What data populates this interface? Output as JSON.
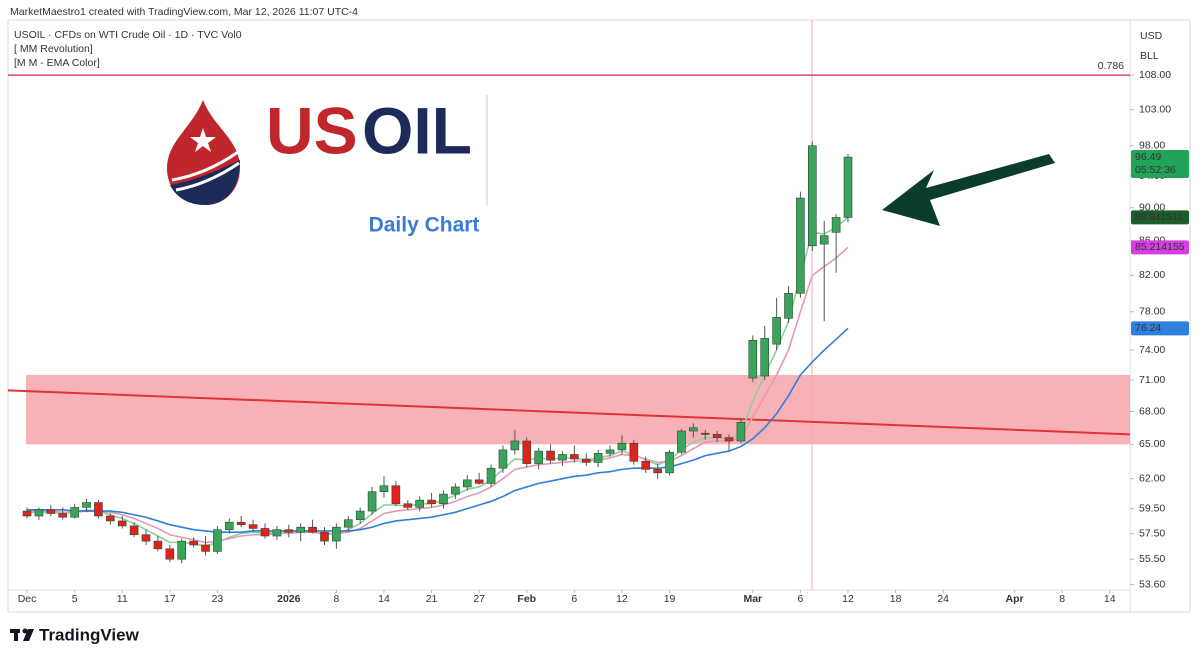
{
  "chart_data": {
    "type": "candlestick",
    "watermark": "MarketMaestro1 created with TradingView.com, Mar 12, 2026 11:07 UTC-4",
    "legend": [
      "USOIL · CFDs on WTI Crude Oil · 1D · TVC  Vol0",
      "[ MM Revolution]",
      "[M M - EMA Color]"
    ],
    "axis_currency": "USD",
    "axis_unit": "BLL",
    "logo_us": "US",
    "logo_oil": "OIL",
    "subtitle": "Daily Chart",
    "footer": "TradingView",
    "countdown": "05:52:36",
    "log_scale": true,
    "grid": false,
    "up_color": "#3aa35c",
    "down_color": "#e2231a",
    "xlim": [
      -1.6,
      92.7
    ],
    "ylim": [
      53.2,
      116.5
    ],
    "xticks": [
      {
        "value": 0,
        "label": "Dec"
      },
      {
        "value": 4,
        "label": "5"
      },
      {
        "value": 8,
        "label": "11"
      },
      {
        "value": 12,
        "label": "17"
      },
      {
        "value": 16,
        "label": "23"
      },
      {
        "value": 22,
        "label": "2026"
      },
      {
        "value": 26,
        "label": "8"
      },
      {
        "value": 30,
        "label": "14"
      },
      {
        "value": 34,
        "label": "21"
      },
      {
        "value": 38,
        "label": "27"
      },
      {
        "value": 42,
        "label": "Feb"
      },
      {
        "value": 46,
        "label": "6"
      },
      {
        "value": 50,
        "label": "12"
      },
      {
        "value": 54,
        "label": "19"
      },
      {
        "value": 61,
        "label": "Mar"
      },
      {
        "value": 65,
        "label": "6"
      },
      {
        "value": 69,
        "label": "12"
      },
      {
        "value": 73,
        "label": "18"
      },
      {
        "value": 77,
        "label": "24"
      },
      {
        "value": 83,
        "label": "Apr"
      },
      {
        "value": 87,
        "label": "8"
      },
      {
        "value": 91,
        "label": "14"
      }
    ],
    "yticks": [
      {
        "value": 108,
        "label": "108.00"
      },
      {
        "value": 103,
        "label": "103.00"
      },
      {
        "value": 98,
        "label": "98.00"
      },
      {
        "value": 94,
        "label": "94.00"
      },
      {
        "value": 90,
        "label": "90.00"
      },
      {
        "value": 86,
        "label": "86.00"
      },
      {
        "value": 82,
        "label": "82.00"
      },
      {
        "value": 78,
        "label": "78.00"
      },
      {
        "value": 74,
        "label": "74.00"
      },
      {
        "value": 71,
        "label": "71.00"
      },
      {
        "value": 68,
        "label": "68.00"
      },
      {
        "value": 65,
        "label": "65.00"
      },
      {
        "value": 62,
        "label": "62.00"
      },
      {
        "value": 59.5,
        "label": "59.50"
      },
      {
        "value": 57.5,
        "label": "57.50"
      },
      {
        "value": 55.5,
        "label": "55.50"
      },
      {
        "value": 53.6,
        "label": "53.60"
      }
    ],
    "open": [
      59.3,
      58.9,
      59.4,
      59.1,
      58.8,
      59.6,
      60.0,
      58.9,
      58.5,
      58.1,
      57.4,
      56.9,
      56.3,
      55.5,
      56.9,
      56.6,
      56.1,
      57.8,
      58.4,
      58.2,
      57.9,
      57.3,
      57.8,
      57.6,
      58.0,
      57.6,
      56.9,
      58.0,
      58.6,
      59.3,
      60.9,
      61.4,
      59.9,
      59.6,
      60.2,
      59.9,
      60.7,
      61.3,
      61.9,
      61.6,
      62.9,
      64.5,
      65.3,
      63.3,
      64.4,
      63.6,
      64.1,
      63.7,
      63.4,
      64.2,
      64.5,
      65.1,
      63.5,
      62.8,
      62.5,
      64.3,
      66.2,
      66.0,
      65.9,
      65.6,
      65.3,
      71.2,
      71.4,
      74.6,
      77.3,
      80.0,
      85.4,
      85.6,
      87.0,
      88.8
    ],
    "high": [
      59.6,
      59.6,
      59.8,
      59.6,
      59.9,
      60.3,
      60.2,
      59.1,
      58.9,
      58.4,
      57.8,
      57.3,
      56.6,
      57.1,
      57.2,
      57.3,
      58.1,
      58.7,
      58.9,
      58.6,
      58.3,
      58.1,
      58.2,
      58.3,
      58.6,
      58.0,
      58.3,
      58.9,
      59.6,
      61.3,
      62.2,
      61.8,
      60.2,
      60.5,
      60.8,
      61.0,
      61.6,
      62.3,
      62.5,
      63.2,
      64.9,
      66.3,
      65.6,
      64.7,
      65.0,
      64.4,
      64.9,
      64.2,
      64.5,
      64.9,
      65.8,
      65.4,
      63.9,
      63.3,
      64.5,
      66.4,
      66.9,
      66.3,
      66.2,
      65.9,
      67.3,
      75.5,
      76.5,
      79.5,
      80.8,
      92.0,
      98.6,
      88.4,
      89.2,
      96.9
    ],
    "low": [
      58.7,
      58.6,
      58.9,
      58.6,
      58.7,
      59.2,
      58.7,
      58.2,
      57.9,
      57.2,
      56.6,
      56.1,
      55.3,
      55.2,
      56.4,
      55.8,
      55.9,
      57.5,
      58.0,
      57.6,
      57.1,
      57.0,
      57.2,
      56.9,
      57.5,
      56.6,
      56.3,
      57.7,
      58.3,
      59.0,
      60.4,
      59.7,
      59.4,
      59.3,
      59.6,
      59.5,
      60.3,
      61.0,
      61.5,
      61.3,
      62.5,
      64.1,
      63.0,
      62.8,
      63.3,
      63.1,
      63.4,
      63.1,
      63.0,
      63.9,
      64.1,
      63.2,
      62.5,
      62.0,
      62.3,
      64.1,
      65.6,
      65.4,
      65.2,
      64.4,
      65.1,
      70.8,
      71.0,
      74.0,
      76.8,
      79.5,
      84.8,
      77.0,
      82.3,
      88.2
    ],
    "close": [
      58.9,
      59.4,
      59.1,
      58.8,
      59.6,
      60.0,
      58.9,
      58.5,
      58.1,
      57.4,
      56.9,
      56.3,
      55.5,
      56.9,
      56.6,
      56.1,
      57.8,
      58.4,
      58.2,
      57.9,
      57.3,
      57.8,
      57.6,
      58.0,
      57.6,
      56.9,
      58.0,
      58.6,
      59.3,
      60.9,
      61.4,
      59.9,
      59.6,
      60.2,
      59.9,
      60.7,
      61.3,
      61.9,
      61.6,
      62.9,
      64.5,
      65.3,
      63.3,
      64.4,
      63.6,
      64.1,
      63.7,
      63.4,
      64.2,
      64.5,
      65.1,
      63.5,
      62.8,
      62.5,
      64.3,
      66.2,
      66.5,
      65.9,
      65.6,
      65.3,
      67.0,
      75.0,
      75.2,
      77.4,
      80.0,
      91.2,
      98.0,
      86.6,
      88.8,
      96.49
    ],
    "last_tag_color": "#22a35a",
    "lines": [
      {
        "color": "#8fcf9e",
        "tag_color": "#1b5e2b",
        "values": [
          59.2,
          59.2,
          59.2,
          59.1,
          59.2,
          59.4,
          59.3,
          59.0,
          58.7,
          58.3,
          57.8,
          57.3,
          56.8,
          56.8,
          56.7,
          56.5,
          56.8,
          57.2,
          57.5,
          57.6,
          57.5,
          57.6,
          57.6,
          57.7,
          57.7,
          57.4,
          57.5,
          57.8,
          58.3,
          59.1,
          59.8,
          59.8,
          59.7,
          59.9,
          59.9,
          60.2,
          60.6,
          61.1,
          61.3,
          61.9,
          62.8,
          63.7,
          63.6,
          63.8,
          63.7,
          63.8,
          63.8,
          63.6,
          63.8,
          64.0,
          64.4,
          64.1,
          63.6,
          63.2,
          63.6,
          64.5,
          65.2,
          65.6,
          65.6,
          65.5,
          66.0,
          69.0,
          71.5,
          74.0,
          77.0,
          82.0,
          87.0,
          86.8,
          87.6,
          88.811511
        ]
      },
      {
        "color": "#e39ab6",
        "tag_color": "#d63fe0",
        "values": [
          59.3,
          59.3,
          59.3,
          59.2,
          59.2,
          59.3,
          59.3,
          59.2,
          59.0,
          58.7,
          58.3,
          57.9,
          57.4,
          57.2,
          57.0,
          56.8,
          56.9,
          57.1,
          57.3,
          57.4,
          57.4,
          57.5,
          57.5,
          57.6,
          57.6,
          57.5,
          57.5,
          57.6,
          57.9,
          58.5,
          59.1,
          59.3,
          59.4,
          59.5,
          59.6,
          59.8,
          60.1,
          60.5,
          60.8,
          61.3,
          62.0,
          62.8,
          63.0,
          63.2,
          63.3,
          63.4,
          63.5,
          63.5,
          63.6,
          63.8,
          64.1,
          64.0,
          63.7,
          63.4,
          63.5,
          64.0,
          64.6,
          65.2,
          65.3,
          65.3,
          65.6,
          67.5,
          69.5,
          71.5,
          74.0,
          78.0,
          82.0,
          83.0,
          84.0,
          85.214155
        ]
      },
      {
        "color": "#2f7fdc",
        "tag_color": "#2f7fdc",
        "values": [
          59.4,
          59.4,
          59.4,
          59.4,
          59.3,
          59.3,
          59.3,
          59.3,
          59.2,
          59.0,
          58.8,
          58.5,
          58.2,
          58.0,
          57.8,
          57.7,
          57.6,
          57.6,
          57.6,
          57.7,
          57.7,
          57.7,
          57.7,
          57.7,
          57.7,
          57.7,
          57.7,
          57.7,
          57.8,
          58.0,
          58.3,
          58.5,
          58.6,
          58.7,
          58.8,
          59.0,
          59.2,
          59.5,
          59.8,
          60.1,
          60.5,
          61.0,
          61.3,
          61.6,
          61.8,
          62.0,
          62.2,
          62.3,
          62.5,
          62.6,
          62.8,
          62.9,
          62.9,
          62.9,
          63.0,
          63.3,
          63.6,
          64.0,
          64.2,
          64.4,
          64.8,
          65.5,
          66.5,
          67.8,
          69.5,
          71.5,
          72.8,
          74.0,
          75.1,
          76.24
        ]
      }
    ],
    "zone": {
      "low": 65.0,
      "high": 71.5,
      "color": "#f7a5aa"
    },
    "trendline": {
      "start": 70.0,
      "end": 65.9,
      "color": "#e0333a"
    },
    "fib_level": {
      "value": 108,
      "label": "0.786",
      "color": "#d7263d"
    }
  }
}
